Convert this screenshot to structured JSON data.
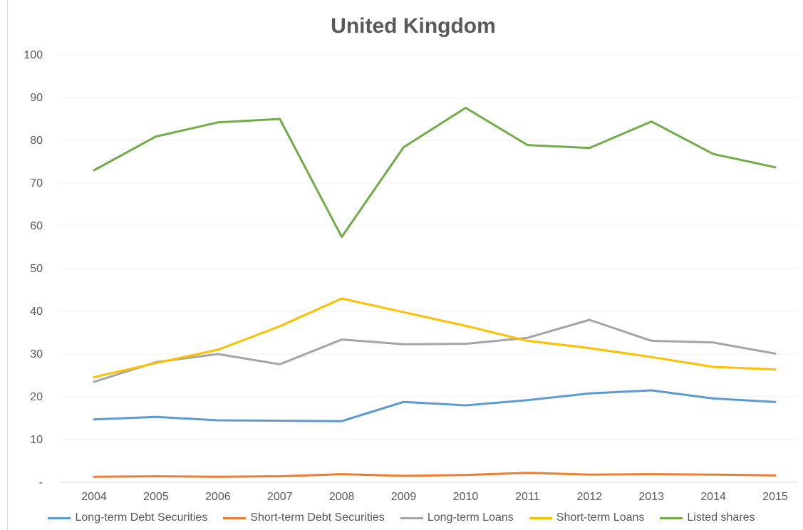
{
  "chart_data": {
    "type": "line",
    "title": "United Kingdom",
    "xlabel": "",
    "ylabel": "",
    "categories": [
      "2004",
      "2005",
      "2006",
      "2007",
      "2008",
      "2009",
      "2010",
      "2011",
      "2012",
      "2013",
      "2014",
      "2015"
    ],
    "ylim": [
      0,
      100
    ],
    "y_ticks": [
      {
        "value": 0,
        "label": "-"
      },
      {
        "value": 10,
        "label": "10"
      },
      {
        "value": 20,
        "label": "20"
      },
      {
        "value": 30,
        "label": "30"
      },
      {
        "value": 40,
        "label": "40"
      },
      {
        "value": 50,
        "label": "50"
      },
      {
        "value": 60,
        "label": "60"
      },
      {
        "value": 70,
        "label": "70"
      },
      {
        "value": 80,
        "label": "80"
      },
      {
        "value": 90,
        "label": "90"
      },
      {
        "value": 100,
        "label": "100"
      }
    ],
    "grid": true,
    "legend_position": "bottom",
    "series": [
      {
        "name": "Long-term Debt Securities",
        "color": "#5b9bd5",
        "values": [
          14.7,
          15.3,
          14.5,
          14.4,
          14.3,
          18.8,
          18.0,
          19.2,
          20.8,
          21.5,
          19.6,
          18.8
        ]
      },
      {
        "name": "Short-term Debt Securities",
        "color": "#ed7d31",
        "values": [
          1.3,
          1.4,
          1.3,
          1.4,
          1.9,
          1.5,
          1.7,
          2.2,
          1.8,
          1.9,
          1.8,
          1.6
        ]
      },
      {
        "name": "Long-term Loans",
        "color": "#a5a5a5",
        "values": [
          23.5,
          28.1,
          30.0,
          27.6,
          33.4,
          32.3,
          32.4,
          33.8,
          38.0,
          33.1,
          32.7,
          30.1
        ]
      },
      {
        "name": "Short-term Loans",
        "color": "#ffc000",
        "values": [
          24.6,
          27.9,
          31.0,
          36.5,
          43.0,
          39.8,
          36.6,
          33.1,
          31.4,
          29.3,
          27.0,
          26.4
        ]
      },
      {
        "name": "Listed shares",
        "color": "#70ad47",
        "values": [
          73.0,
          80.9,
          84.2,
          85.0,
          57.4,
          78.4,
          87.6,
          78.9,
          78.2,
          84.4,
          76.8,
          73.7
        ]
      }
    ]
  }
}
